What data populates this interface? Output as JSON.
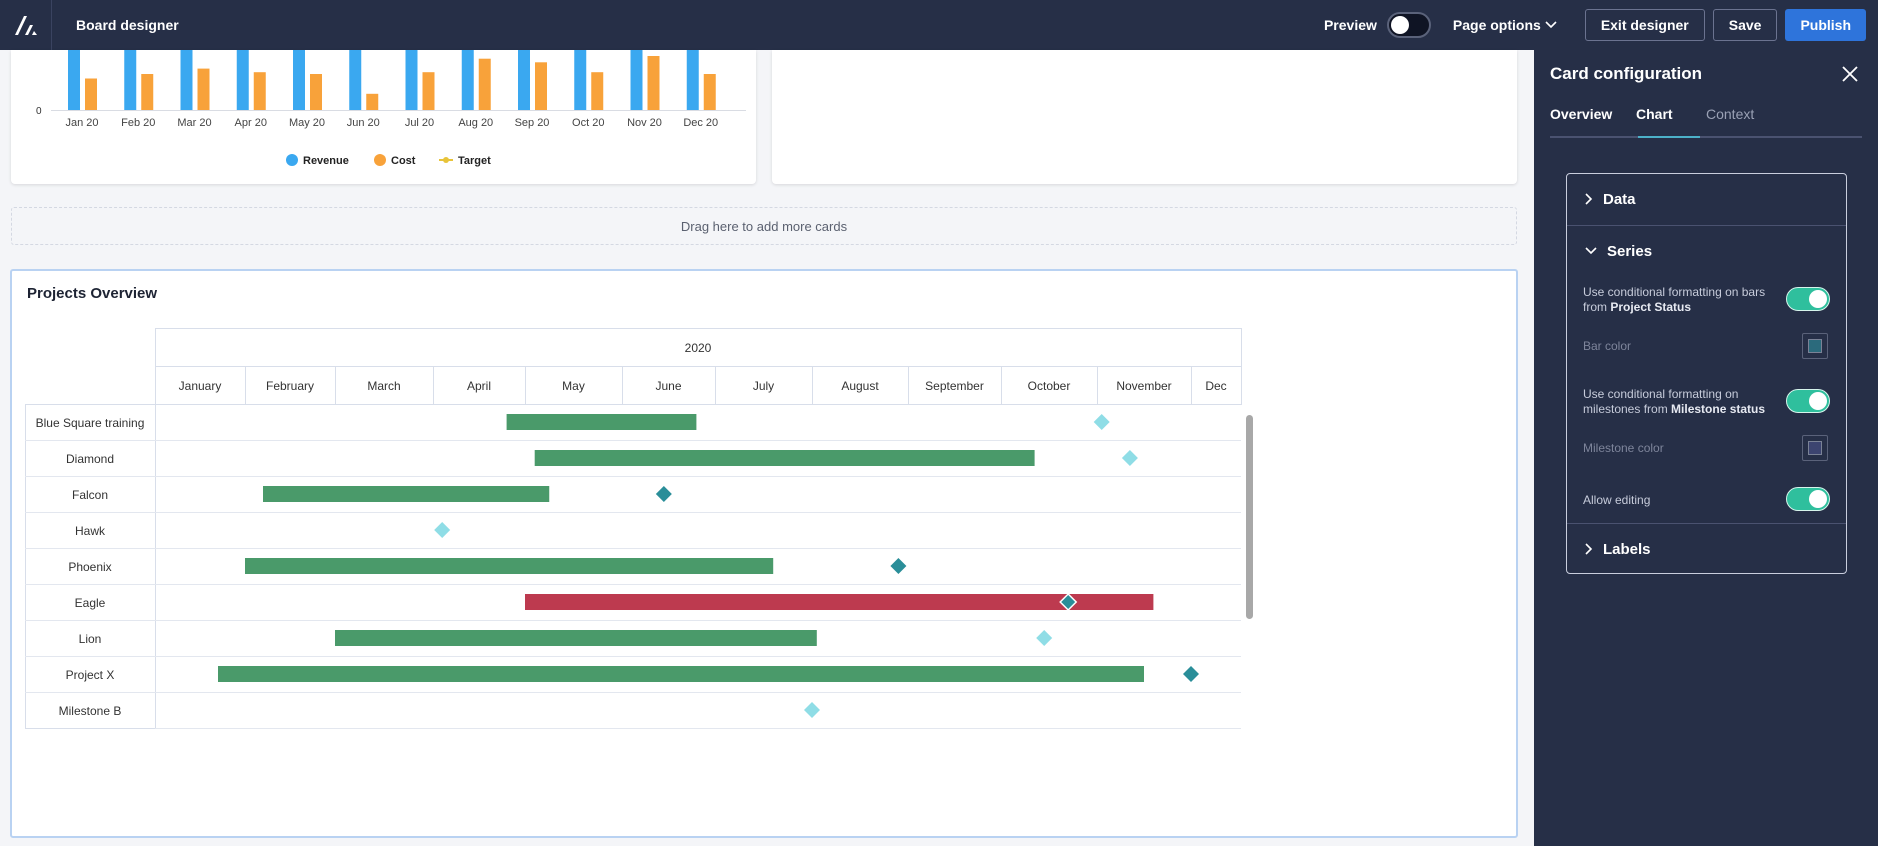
{
  "topbar": {
    "title": "Board designer",
    "preview_label": "Preview",
    "page_options_label": "Page options",
    "exit_label": "Exit designer",
    "save_label": "Save",
    "publish_label": "Publish"
  },
  "revenue_card": {
    "chart_data": {
      "type": "bar",
      "categories": [
        "Jan 20",
        "Feb 20",
        "Mar 20",
        "Apr 20",
        "May 20",
        "Jun 20",
        "Jul 20",
        "Aug 20",
        "Sep 20",
        "Oct 20",
        "Nov 20",
        "Dec 20"
      ],
      "series": [
        {
          "name": "Revenue",
          "color": "#3aa8f0",
          "values": [
            100,
            100,
            100,
            100,
            100,
            100,
            100,
            100,
            100,
            100,
            100,
            100
          ]
        },
        {
          "name": "Cost",
          "color": "#f8a23a",
          "values": [
            35,
            40,
            46,
            42,
            40,
            18,
            42,
            57,
            53,
            42,
            60,
            40
          ]
        }
      ],
      "extra_legend": {
        "name": "Target",
        "color": "#e8c43a"
      },
      "y_tick": "0",
      "ylim": [
        0,
        100
      ]
    }
  },
  "drop_zone_text": "Drag here to add more cards",
  "projects_card": {
    "title": "Projects Overview",
    "chart_data": {
      "type": "gantt",
      "year": "2020",
      "months": [
        "January",
        "February",
        "March",
        "April",
        "May",
        "June",
        "July",
        "August",
        "September",
        "October",
        "November",
        "Dec"
      ],
      "rows": [
        {
          "name": "Blue Square training",
          "bar": [
            3.8,
            5.8
          ],
          "status": "on-track",
          "milestone": 10.05,
          "milestone_style": "light"
        },
        {
          "name": "Diamond",
          "bar": [
            4.1,
            9.35
          ],
          "status": "on-track",
          "milestone": 10.35,
          "milestone_style": "light"
        },
        {
          "name": "Falcon",
          "bar": [
            1.2,
            4.25
          ],
          "status": "on-track",
          "milestone": 5.45,
          "milestone_style": "dark"
        },
        {
          "name": "Hawk",
          "bar": null,
          "status": "on-track",
          "milestone": 3.1,
          "milestone_style": "light"
        },
        {
          "name": "Phoenix",
          "bar": [
            1.0,
            6.6
          ],
          "status": "on-track",
          "milestone": 7.9,
          "milestone_style": "dark"
        },
        {
          "name": "Eagle",
          "bar": [
            4.0,
            10.6
          ],
          "status": "late",
          "milestone": 9.7,
          "milestone_style": "dark"
        },
        {
          "name": "Lion",
          "bar": [
            2.0,
            7.05
          ],
          "status": "on-track",
          "milestone": 9.45,
          "milestone_style": "light"
        },
        {
          "name": "Project X",
          "bar": [
            0.7,
            10.5
          ],
          "status": "on-track",
          "milestone": 11.0,
          "milestone_style": "dark"
        },
        {
          "name": "Milestone B",
          "bar": null,
          "status": "on-track",
          "milestone": 7.0,
          "milestone_style": "light"
        }
      ],
      "colors": {
        "on-track": "#4a9a6a",
        "late": "#bd3a4f",
        "light": "#8fdde6",
        "dark": "#2a8e99"
      }
    }
  },
  "panel": {
    "title": "Card configuration",
    "tabs": {
      "overview": "Overview",
      "chart": "Chart",
      "context": "Context"
    },
    "sections": {
      "data": "Data",
      "series": "Series",
      "labels": "Labels"
    },
    "cond_bars_text": "Use conditional formatting on bars from ",
    "cond_bars_bold": "Project Status",
    "bar_color_label": "Bar color",
    "cond_milestones_text": "Use conditional formatting on milestones from ",
    "cond_milestones_bold": "Milestone status",
    "milestone_color_label": "Milestone color",
    "allow_editing_label": "Allow editing",
    "bar_swatch_color": "#2b6a7c",
    "milestone_swatch_color": "#3c4470"
  }
}
